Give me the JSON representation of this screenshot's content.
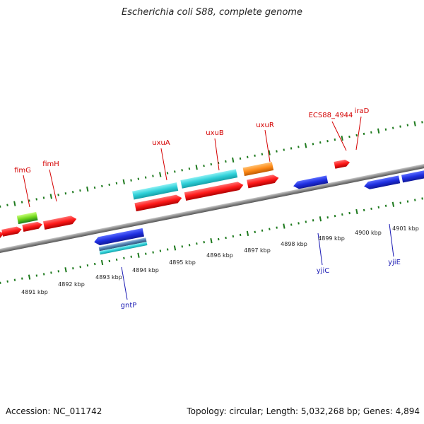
{
  "title": "Escherichia coli S88, complete genome",
  "accession_text": "Accession: NC_011742",
  "topology_text": "Topology: circular; Length: 5,032,268 bp; Genes: 4,894",
  "colors": {
    "forward_red": "#ff1a1a",
    "cyan": "#2fd0d8",
    "blue": "#1f2fe0",
    "orange": "#ff8c1a",
    "green": "#6fd61a",
    "steelblue": "#4f7fb0",
    "backbone": "#8a8a8a",
    "tick_green": "#1e7a1e",
    "label_red": "#d40000",
    "label_blue": "#1a1ab4"
  },
  "scale_labels": [
    "4891 kbp",
    "4892 kbp",
    "4893 kbp",
    "4894 kbp",
    "4895 kbp",
    "4896 kbp",
    "4897 kbp",
    "4898 kbp",
    "4899 kbp",
    "4900 kbp",
    "4901 kbp"
  ],
  "gene_labels_top": [
    "fimG",
    "fimH",
    "uxuA",
    "uxuB",
    "uxuR",
    "ECS88_4944",
    "iraD"
  ],
  "gene_labels_bottom": [
    "gntP",
    "yjiC",
    "yjiE"
  ]
}
